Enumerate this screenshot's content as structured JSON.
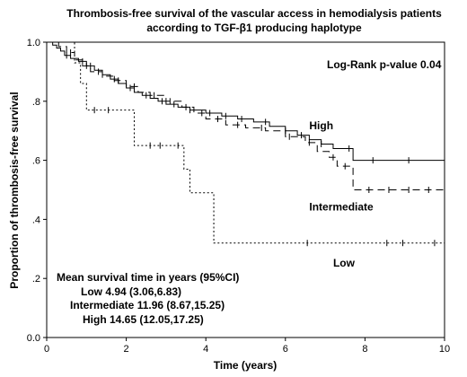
{
  "chart_data": {
    "type": "line",
    "title": "Thrombosis-free survival of the vascular access in hemodialysis patients",
    "subtitle": "according to TGF-β1 producing haplotype",
    "xlabel": "Time (years)",
    "ylabel": "Proportion of thrombosis-free survival",
    "xlim": [
      0,
      10
    ],
    "ylim": [
      0,
      1
    ],
    "x_ticks": [
      "0",
      "2",
      "4",
      "6",
      "8",
      "10"
    ],
    "y_ticks": [
      "0.0",
      ".2",
      ".4",
      ".6",
      ".8",
      "1.0"
    ],
    "grid": false,
    "pvalue_text": "Log-Rank p-value 0.04",
    "mean_survival": {
      "heading": "Mean survival time in years (95%CI)",
      "lines": [
        "Low 4.94 (3.06,6.83)",
        "Intermediate 11.96 (8.67,15.25)",
        "High 14.65 (12.05,17.25)"
      ]
    },
    "series": [
      {
        "name": "High",
        "style": "solid",
        "label_at": [
          6.6,
          0.705
        ],
        "steps": [
          [
            0,
            1.0
          ],
          [
            0.15,
            0.99
          ],
          [
            0.25,
            0.98
          ],
          [
            0.35,
            0.97
          ],
          [
            0.45,
            0.955
          ],
          [
            0.6,
            0.945
          ],
          [
            0.8,
            0.935
          ],
          [
            1.0,
            0.92
          ],
          [
            1.2,
            0.905
          ],
          [
            1.4,
            0.89
          ],
          [
            1.6,
            0.875
          ],
          [
            1.8,
            0.86
          ],
          [
            2.0,
            0.845
          ],
          [
            2.2,
            0.83
          ],
          [
            2.4,
            0.82
          ],
          [
            2.6,
            0.81
          ],
          [
            2.8,
            0.8
          ],
          [
            3.0,
            0.79
          ],
          [
            3.3,
            0.78
          ],
          [
            3.6,
            0.77
          ],
          [
            4.0,
            0.76
          ],
          [
            4.4,
            0.75
          ],
          [
            4.8,
            0.74
          ],
          [
            5.2,
            0.73
          ],
          [
            5.6,
            0.715
          ],
          [
            6.0,
            0.7
          ],
          [
            6.3,
            0.685
          ],
          [
            6.6,
            0.67
          ],
          [
            6.9,
            0.655
          ],
          [
            7.2,
            0.64
          ],
          [
            7.7,
            0.6
          ],
          [
            10.0,
            0.6
          ]
        ],
        "censor_x": [
          0.5,
          0.9,
          1.1,
          1.4,
          1.7,
          2.1,
          2.5,
          2.9,
          3.2,
          3.6,
          4.1,
          4.5,
          4.9,
          5.5,
          6.0,
          6.4,
          6.9,
          7.6,
          8.2,
          9.1
        ]
      },
      {
        "name": "Intermediate",
        "style": "dashed",
        "label_at": [
          6.6,
          0.43
        ],
        "steps": [
          [
            0,
            1.0
          ],
          [
            0.3,
            0.985
          ],
          [
            0.5,
            0.965
          ],
          [
            0.7,
            0.94
          ],
          [
            0.9,
            0.92
          ],
          [
            1.1,
            0.9
          ],
          [
            1.4,
            0.885
          ],
          [
            1.7,
            0.87
          ],
          [
            2.0,
            0.85
          ],
          [
            2.3,
            0.83
          ],
          [
            2.6,
            0.82
          ],
          [
            3.0,
            0.8
          ],
          [
            3.4,
            0.78
          ],
          [
            3.7,
            0.76
          ],
          [
            4.0,
            0.74
          ],
          [
            4.5,
            0.72
          ],
          [
            5.0,
            0.71
          ],
          [
            5.5,
            0.7
          ],
          [
            6.0,
            0.68
          ],
          [
            6.5,
            0.66
          ],
          [
            6.8,
            0.63
          ],
          [
            7.1,
            0.61
          ],
          [
            7.3,
            0.58
          ],
          [
            7.6,
            0.58
          ],
          [
            7.7,
            0.5
          ],
          [
            10.0,
            0.5
          ]
        ],
        "censor_x": [
          0.6,
          1.0,
          1.3,
          1.8,
          2.2,
          2.7,
          3.1,
          3.5,
          3.9,
          4.3,
          4.8,
          5.4,
          6.1,
          6.6,
          7.2,
          7.5,
          8.1,
          8.6,
          9.1,
          9.6
        ]
      },
      {
        "name": "Low",
        "style": "dotted",
        "label_at": [
          7.2,
          0.24
        ],
        "steps": [
          [
            0,
            1.0
          ],
          [
            0.7,
            0.93
          ],
          [
            0.85,
            0.86
          ],
          [
            1.0,
            0.77
          ],
          [
            2.2,
            0.65
          ],
          [
            3.45,
            0.57
          ],
          [
            3.6,
            0.49
          ],
          [
            4.2,
            0.32
          ],
          [
            10.0,
            0.32
          ]
        ],
        "censor_x": [
          1.2,
          1.55,
          2.6,
          2.85,
          3.3,
          6.55,
          8.55,
          8.95,
          9.75
        ]
      }
    ]
  }
}
